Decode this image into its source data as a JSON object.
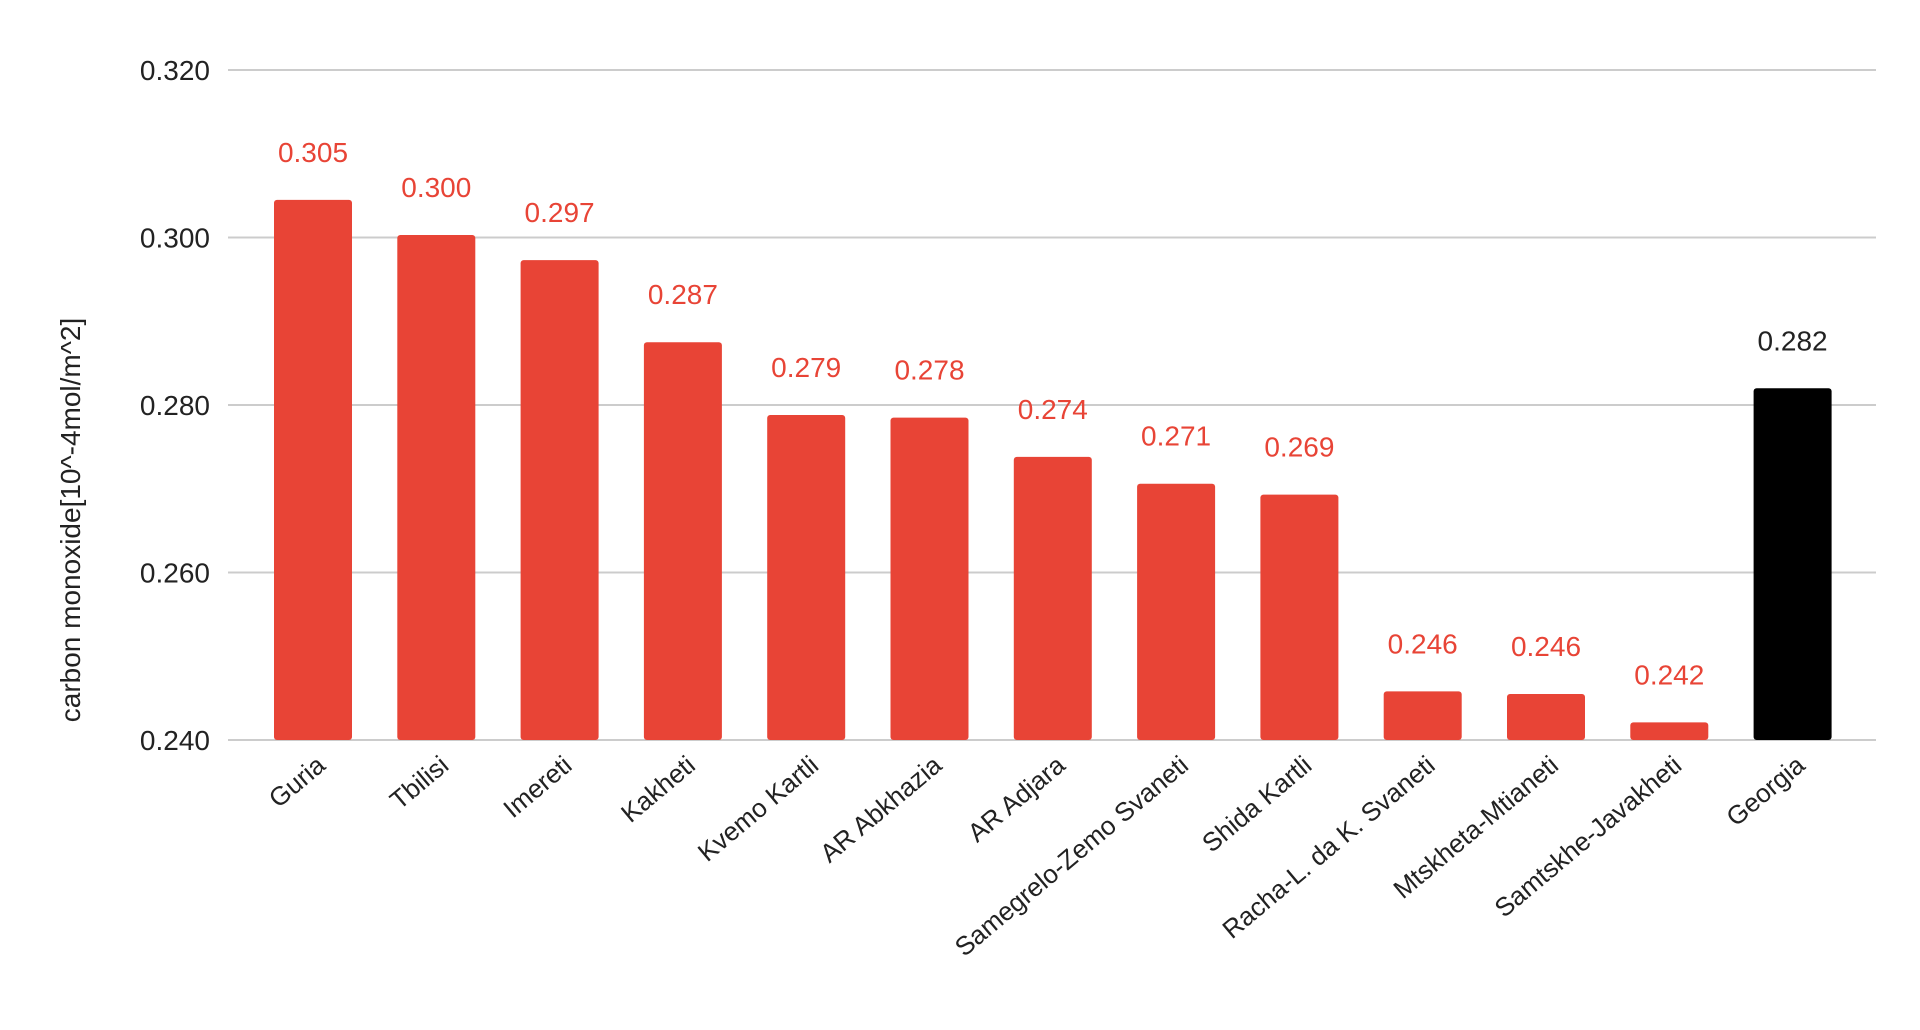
{
  "chart_data": {
    "type": "bar",
    "title": "",
    "xlabel": "",
    "ylabel": "carbon monoxide[10^-4mol/m^2]",
    "ylim": [
      0.24,
      0.32
    ],
    "yticks": [
      "0.240",
      "0.260",
      "0.280",
      "0.300",
      "0.320"
    ],
    "ytick_values": [
      0.24,
      0.26,
      0.28,
      0.3,
      0.32
    ],
    "grid": true,
    "legend": "none",
    "categories": [
      "Guria",
      "Tbilisi",
      "Imereti",
      "Kakheti",
      "Kvemo Kartli",
      "AR Abkhazia",
      "AR Adjara",
      "Samegrelo-Zemo Svaneti",
      "Shida Kartli",
      "Racha-L. da K. Svaneti",
      "Mtskheta-Mtianeti",
      "Samtskhe-Javakheti",
      "Georgia"
    ],
    "values": [
      0.3045,
      0.3003,
      0.2973,
      0.2875,
      0.2788,
      0.2785,
      0.2738,
      0.2706,
      0.2693,
      0.2458,
      0.2455,
      0.2421,
      0.282
    ],
    "value_labels": [
      "0.305",
      "0.300",
      "0.297",
      "0.287",
      "0.279",
      "0.278",
      "0.274",
      "0.271",
      "0.269",
      "0.246",
      "0.246",
      "0.242",
      "0.282"
    ],
    "colors": {
      "default": "#E84436",
      "highlight": "#000000",
      "gridline": "#cccccc",
      "text": "#222222"
    },
    "highlight_category": "Georgia"
  }
}
